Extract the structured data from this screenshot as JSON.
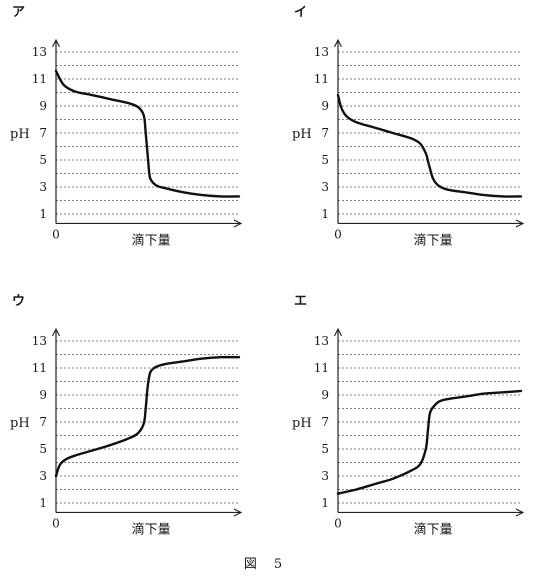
{
  "figure_caption": "図　5",
  "chart_data": [
    {
      "type": "line",
      "panel_label": "ア",
      "xlabel": "滴下量",
      "ylabel": "pH",
      "x_tick_label": "0",
      "ylim": [
        0,
        14
      ],
      "y_ticks": [
        1,
        3,
        5,
        7,
        9,
        11,
        13
      ],
      "grid": true,
      "x": [
        0,
        0.04,
        0.1,
        0.2,
        0.3,
        0.4,
        0.45,
        0.48,
        0.49,
        0.5,
        0.51,
        0.52,
        0.55,
        0.6,
        0.7,
        0.8,
        0.9,
        1.0
      ],
      "values": [
        11.6,
        10.6,
        10.1,
        9.8,
        9.5,
        9.2,
        8.9,
        8.3,
        7.0,
        5.5,
        4.0,
        3.5,
        3.1,
        2.9,
        2.6,
        2.4,
        2.3,
        2.3
      ]
    },
    {
      "type": "line",
      "panel_label": "イ",
      "xlabel": "滴下量",
      "ylabel": "pH",
      "x_tick_label": "0",
      "ylim": [
        0,
        14
      ],
      "y_ticks": [
        1,
        3,
        5,
        7,
        9,
        11,
        13
      ],
      "grid": true,
      "x": [
        0,
        0.02,
        0.05,
        0.1,
        0.2,
        0.3,
        0.4,
        0.45,
        0.48,
        0.49,
        0.5,
        0.52,
        0.55,
        0.6,
        0.7,
        0.8,
        0.9,
        1.0
      ],
      "values": [
        9.8,
        8.8,
        8.2,
        7.8,
        7.4,
        7.0,
        6.6,
        6.2,
        5.5,
        5.0,
        4.5,
        3.6,
        3.1,
        2.8,
        2.6,
        2.4,
        2.3,
        2.3
      ]
    },
    {
      "type": "line",
      "panel_label": "ウ",
      "xlabel": "滴下量",
      "ylabel": "pH",
      "x_tick_label": "0",
      "ylim": [
        0,
        14
      ],
      "y_ticks": [
        1,
        3,
        5,
        7,
        9,
        11,
        13
      ],
      "grid": true,
      "x": [
        0,
        0.02,
        0.05,
        0.1,
        0.2,
        0.3,
        0.4,
        0.45,
        0.48,
        0.49,
        0.5,
        0.51,
        0.52,
        0.55,
        0.6,
        0.7,
        0.8,
        0.9,
        1.0
      ],
      "values": [
        3.0,
        3.8,
        4.2,
        4.5,
        4.9,
        5.3,
        5.8,
        6.2,
        6.9,
        8.0,
        9.5,
        10.4,
        10.8,
        11.1,
        11.3,
        11.5,
        11.7,
        11.8,
        11.8
      ]
    },
    {
      "type": "line",
      "panel_label": "エ",
      "xlabel": "滴下量",
      "ylabel": "pH",
      "x_tick_label": "0",
      "ylim": [
        0,
        14
      ],
      "y_ticks": [
        1,
        3,
        5,
        7,
        9,
        11,
        13
      ],
      "grid": true,
      "x": [
        0,
        0.1,
        0.2,
        0.3,
        0.4,
        0.45,
        0.48,
        0.49,
        0.5,
        0.51,
        0.52,
        0.55,
        0.6,
        0.7,
        0.8,
        0.9,
        1.0
      ],
      "values": [
        1.7,
        2.0,
        2.4,
        2.8,
        3.4,
        3.9,
        5.0,
        6.2,
        7.5,
        7.9,
        8.1,
        8.5,
        8.7,
        8.9,
        9.1,
        9.2,
        9.3
      ]
    }
  ]
}
